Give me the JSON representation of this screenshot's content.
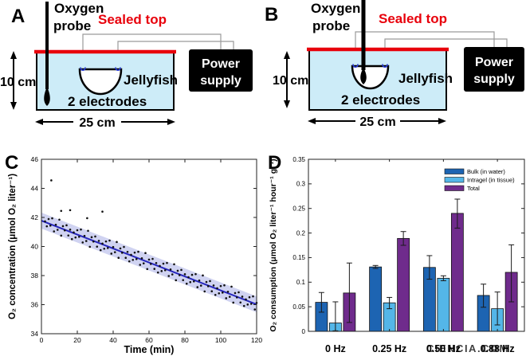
{
  "figure": {
    "background": "#ffffff"
  },
  "panels": {
    "a": {
      "letter": "A",
      "oxygen_probe_lines": [
        "Oxygen",
        "probe"
      ],
      "sealed_top": "Sealed top",
      "height_label": "10 cm",
      "width_label": "25 cm",
      "jellyfish_label": "Jellyfish",
      "electrodes_label": "2 electrodes",
      "power_supply_lines": [
        "Power",
        "supply"
      ]
    },
    "b": {
      "letter": "B",
      "oxygen_probe_lines": [
        "Oxygen",
        "probe"
      ],
      "sealed_top": "Sealed top",
      "height_label": "10 cm",
      "width_label": "25 cm",
      "jellyfish_label": "Jellyfish",
      "electrodes_label": "2 electrodes",
      "power_supply_lines": [
        "Power",
        "supply"
      ]
    },
    "c": {
      "letter": "C"
    },
    "d": {
      "letter": "D"
    }
  },
  "colors": {
    "tank_fill": "#cdecf8",
    "sealed_top_red": "#e8000b",
    "wire_gray": "#9a9a9a",
    "electrode_blue": "#2b3fd6",
    "bulk_blue": "#1d64b2",
    "intragel_blue": "#54b6e8",
    "total_purple": "#6f2b8c"
  },
  "watermark": {
    "text": "CIENCIA.COM",
    "color": "#f29cae"
  },
  "chart_data": [
    {
      "type": "scatter",
      "panel": "C",
      "xlabel": "Time (min)",
      "ylabel": "O₂ concentration (μmol O₂ liter⁻¹)",
      "xlim": [
        0,
        120
      ],
      "ylim": [
        34,
        46
      ],
      "xticks": [
        0,
        20,
        40,
        60,
        80,
        100,
        120
      ],
      "yticks": [
        34,
        36,
        38,
        40,
        42,
        44,
        46
      ],
      "grid": false,
      "point_color": "#111111",
      "fit_line": {
        "x": [
          0,
          120
        ],
        "y": [
          41.78,
          36.02
        ],
        "color": "#2525bd"
      },
      "band": {
        "halfwidth": 0.55,
        "color": "#8f95dd",
        "opacity": 0.42
      },
      "outliers": [
        [
          5.5,
          44.55
        ],
        [
          11,
          42.45
        ],
        [
          16,
          42.5
        ],
        [
          25.5,
          41.95
        ],
        [
          34,
          42.4
        ]
      ],
      "points": [
        [
          2,
          41.73
        ],
        [
          3,
          41.39
        ],
        [
          4,
          41.89
        ],
        [
          5,
          41.44
        ],
        [
          6,
          41.94
        ],
        [
          7,
          41.04
        ],
        [
          8,
          41.5
        ],
        [
          9,
          41.15
        ],
        [
          10,
          41.85
        ],
        [
          11,
          40.75
        ],
        [
          12,
          41.4
        ],
        [
          13,
          41.11
        ],
        [
          14,
          41.46
        ],
        [
          15,
          40.76
        ],
        [
          16,
          41.16
        ],
        [
          17,
          40.51
        ],
        [
          18,
          40.97
        ],
        [
          19,
          40.62
        ],
        [
          20,
          41.12
        ],
        [
          21,
          40.67
        ],
        [
          22,
          41.17
        ],
        [
          23,
          40.28
        ],
        [
          24,
          40.73
        ],
        [
          25,
          40.38
        ],
        [
          26,
          41.08
        ],
        [
          27,
          39.98
        ],
        [
          28,
          40.64
        ],
        [
          29,
          40.34
        ],
        [
          30,
          40.69
        ],
        [
          31,
          39.99
        ],
        [
          32,
          40.39
        ],
        [
          33,
          39.75
        ],
        [
          34,
          40.2
        ],
        [
          35,
          39.85
        ],
        [
          36,
          40.35
        ],
        [
          37,
          39.9
        ],
        [
          38,
          40.41
        ],
        [
          39,
          39.51
        ],
        [
          40,
          39.96
        ],
        [
          41,
          39.61
        ],
        [
          42,
          40.31
        ],
        [
          43,
          39.22
        ],
        [
          44,
          39.87
        ],
        [
          45,
          39.57
        ],
        [
          46,
          39.97
        ],
        [
          47,
          39.22
        ],
        [
          48,
          39.63
        ],
        [
          49,
          38.98
        ],
        [
          50,
          39.43
        ],
        [
          51,
          39.08
        ],
        [
          52,
          39.58
        ],
        [
          53,
          39.14
        ],
        [
          54,
          39.64
        ],
        [
          55,
          38.74
        ],
        [
          56,
          39.19
        ],
        [
          57,
          38.84
        ],
        [
          58,
          39.55
        ],
        [
          59,
          38.45
        ],
        [
          60,
          39.1
        ],
        [
          61,
          38.8
        ],
        [
          62,
          39.15
        ],
        [
          63,
          38.46
        ],
        [
          64,
          38.86
        ],
        [
          65,
          38.21
        ],
        [
          66,
          38.66
        ],
        [
          67,
          38.31
        ],
        [
          68,
          38.82
        ],
        [
          69,
          38.37
        ],
        [
          70,
          38.87
        ],
        [
          71,
          37.97
        ],
        [
          72,
          38.42
        ],
        [
          73,
          38.08
        ],
        [
          74,
          38.78
        ],
        [
          75,
          37.68
        ],
        [
          76,
          38.33
        ],
        [
          77,
          38.03
        ],
        [
          78,
          38.39
        ],
        [
          79,
          37.69
        ],
        [
          80,
          38.09
        ],
        [
          81,
          37.44
        ],
        [
          82,
          37.89
        ],
        [
          83,
          37.55
        ],
        [
          84,
          38.05
        ],
        [
          85,
          37.6
        ],
        [
          86,
          38.1
        ],
        [
          87,
          37.2
        ],
        [
          88,
          37.66
        ],
        [
          89,
          37.31
        ],
        [
          90,
          38.01
        ],
        [
          91,
          36.91
        ],
        [
          92,
          37.56
        ],
        [
          93,
          37.27
        ],
        [
          94,
          37.62
        ],
        [
          95,
          36.92
        ],
        [
          96,
          37.32
        ],
        [
          97,
          36.67
        ],
        [
          98,
          37.13
        ],
        [
          99,
          36.78
        ],
        [
          100,
          37.28
        ],
        [
          101,
          36.83
        ],
        [
          102,
          37.33
        ],
        [
          103,
          36.44
        ],
        [
          104,
          36.89
        ],
        [
          105,
          36.54
        ],
        [
          106,
          37.24
        ],
        [
          107,
          36.14
        ],
        [
          108,
          36.8
        ],
        [
          109,
          36.5
        ],
        [
          110,
          36.85
        ],
        [
          111,
          36.15
        ],
        [
          112,
          36.55
        ],
        [
          113,
          35.91
        ],
        [
          114,
          36.36
        ],
        [
          115,
          36.01
        ],
        [
          116,
          36.51
        ],
        [
          117,
          36.06
        ],
        [
          118,
          36.57
        ],
        [
          119,
          35.67
        ],
        [
          120,
          36.12
        ]
      ]
    },
    {
      "type": "bar",
      "panel": "D",
      "xlabel": "",
      "ylabel": "O₂ consumption (μmol O₂ liter⁻¹ hour⁻¹ g⁻¹)",
      "categories": [
        "0 Hz",
        "0.25 Hz",
        "0.50 Hz",
        "0.88 Hz"
      ],
      "ylim": [
        0,
        0.35
      ],
      "yticks": [
        0,
        0.05,
        0.1,
        0.15,
        0.2,
        0.25,
        0.3,
        0.35
      ],
      "ytick_labels": [
        "0",
        "0.05",
        "0.1",
        "0.15",
        "0.2",
        "0.25",
        "0.3",
        "0.35"
      ],
      "legend_position": "top-right",
      "bar_edge_color": "#111111",
      "series": [
        {
          "name": "Bulk (in water)",
          "color": "#1d64b2",
          "values": [
            0.059,
            0.131,
            0.13,
            0.073
          ],
          "err_up": [
            0.02,
            0.003,
            0.024,
            0.023
          ],
          "err_down": [
            0.02,
            0.003,
            0.024,
            0.024
          ]
        },
        {
          "name": "Intragel (in tissue)",
          "color": "#54b6e8",
          "values": [
            0.017,
            0.058,
            0.108,
            0.046
          ],
          "err_up": [
            0.043,
            0.011,
            0.005,
            0.034
          ],
          "err_down": [
            0.016,
            0.012,
            0.005,
            0.033
          ]
        },
        {
          "name": "Total",
          "color": "#6f2b8c",
          "values": [
            0.078,
            0.189,
            0.24,
            0.12
          ],
          "err_up": [
            0.061,
            0.014,
            0.029,
            0.056
          ],
          "err_down": [
            0.06,
            0.014,
            0.03,
            0.06
          ]
        }
      ]
    }
  ]
}
